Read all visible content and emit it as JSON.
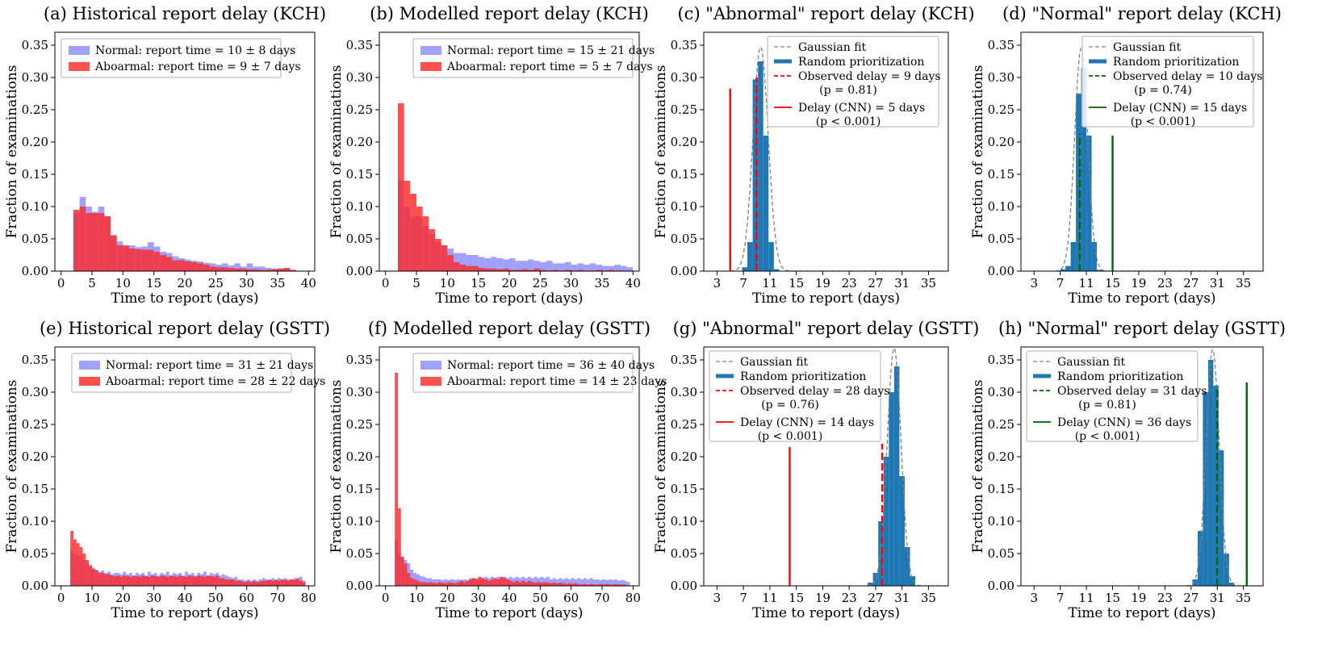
{
  "chart_data": [
    {
      "id": "a",
      "type": "histogram",
      "title": "(a) Historical report delay (KCH)",
      "xlabel": "Time to report (days)",
      "ylabel": "Fraction of examinations",
      "xlim": [
        -1,
        41
      ],
      "ylim": [
        0,
        0.37
      ],
      "xticks": [
        0,
        5,
        10,
        15,
        20,
        25,
        30,
        35,
        40
      ],
      "yticks": [
        0.0,
        0.05,
        0.1,
        0.15,
        0.2,
        0.25,
        0.3,
        0.35
      ],
      "ytick_labels": [
        "0.00",
        "0.05",
        "0.10",
        "0.15",
        "0.20",
        "0.25",
        "0.30",
        "0.35"
      ],
      "legend_position": "upper-left",
      "bins": {
        "start": 2,
        "width": 1
      },
      "series": [
        {
          "name": "Normal: report time = 10 ± 8 days",
          "color": "#8080ff",
          "values": [
            0.09,
            0.115,
            0.1,
            0.092,
            0.1,
            0.085,
            0.056,
            0.046,
            0.038,
            0.04,
            0.037,
            0.038,
            0.045,
            0.038,
            0.03,
            0.028,
            0.023,
            0.02,
            0.018,
            0.016,
            0.015,
            0.013,
            0.012,
            0.01,
            0.012,
            0.009,
            0.012,
            0.007,
            0.012,
            0.007,
            0.007,
            0.005,
            0.004,
            0.004,
            0.005,
            0.002
          ]
        },
        {
          "name": "Aboarmal: report time = 9 ± 7 days",
          "color": "#ff2a2a",
          "values": [
            0.095,
            0.1,
            0.09,
            0.09,
            0.09,
            0.085,
            0.055,
            0.04,
            0.04,
            0.035,
            0.034,
            0.033,
            0.033,
            0.03,
            0.025,
            0.022,
            0.017,
            0.017,
            0.015,
            0.014,
            0.012,
            0.01,
            0.007,
            0.006,
            0.006,
            0.005,
            0.004,
            0.004,
            0.003,
            0.003,
            0.002,
            0.002,
            0.003,
            0.004,
            0.005,
            0.002
          ]
        }
      ]
    },
    {
      "id": "b",
      "type": "histogram",
      "title": "(b) Modelled report delay (KCH)",
      "xlabel": "Time to report (days)",
      "ylabel": "Fraction of examinations",
      "xlim": [
        -1,
        41
      ],
      "ylim": [
        0,
        0.37
      ],
      "xticks": [
        0,
        5,
        10,
        15,
        20,
        25,
        30,
        35,
        40
      ],
      "yticks": [
        0.0,
        0.05,
        0.1,
        0.15,
        0.2,
        0.25,
        0.3,
        0.35
      ],
      "ytick_labels": [
        "0.00",
        "0.05",
        "0.10",
        "0.15",
        "0.20",
        "0.25",
        "0.30",
        "0.35"
      ],
      "legend_position": "upper-right",
      "bins": {
        "start": 2,
        "width": 1
      },
      "series": [
        {
          "name": "Normal: report time = 15 ± 21 days",
          "color": "#8080ff",
          "values": [
            0.14,
            0.1,
            0.085,
            0.085,
            0.07,
            0.058,
            0.045,
            0.04,
            0.035,
            0.028,
            0.028,
            0.025,
            0.025,
            0.022,
            0.02,
            0.022,
            0.02,
            0.018,
            0.02,
            0.016,
            0.016,
            0.018,
            0.016,
            0.014,
            0.016,
            0.012,
            0.012,
            0.014,
            0.01,
            0.012,
            0.01,
            0.012,
            0.01,
            0.008,
            0.008,
            0.01,
            0.008,
            0.006
          ]
        },
        {
          "name": "Aboarmal: report time = 5 ± 7 days",
          "color": "#ff2a2a",
          "values": [
            0.26,
            0.14,
            0.12,
            0.1,
            0.085,
            0.065,
            0.05,
            0.04,
            0.025,
            0.014,
            0.01,
            0.008,
            0.008,
            0.005,
            0.004,
            0.004,
            0.003,
            0.004,
            0.002,
            0.002,
            0.003,
            0.002,
            0.004,
            0.002,
            0.001,
            0.002,
            0.001,
            0.002,
            0.001,
            0.002,
            0.001,
            0.001,
            0.002,
            0.001,
            0.002,
            0.001,
            0.001,
            0.001
          ]
        }
      ]
    },
    {
      "id": "c",
      "type": "significance",
      "title": "(c) \"Abnormal\" report delay (KCH)",
      "xlabel": "Time to report (days)",
      "ylabel": "Fraction of examinations",
      "xlim": [
        1,
        38
      ],
      "ylim": [
        0,
        0.37
      ],
      "xticks": [
        3,
        7,
        11,
        15,
        19,
        23,
        27,
        31,
        35
      ],
      "yticks": [
        0.0,
        0.05,
        0.1,
        0.15,
        0.2,
        0.25,
        0.3,
        0.35
      ],
      "ytick_labels": [
        "0.00",
        "0.05",
        "0.10",
        "0.15",
        "0.20",
        "0.25",
        "0.30",
        "0.35"
      ],
      "legend_position": "upper-right",
      "histogram": {
        "bin_starts": [
          6.8,
          7.6,
          8.4,
          9.2,
          10.0,
          10.8,
          11.6
        ],
        "bin_width": 0.8,
        "values": [
          0.006,
          0.045,
          0.297,
          0.325,
          0.21,
          0.045,
          0.003
        ],
        "color": "#1f77b4"
      },
      "gaussian": {
        "mean": 9.6,
        "sd": 1.15,
        "peak": 0.347,
        "color": "#808080"
      },
      "observed_line": {
        "x": 9,
        "height": 0.3,
        "color": "#ff0000"
      },
      "cnn_line": {
        "x": 5,
        "height": 0.283,
        "color": "#ff0000"
      },
      "legend": [
        "Gaussian fit",
        "Random prioritization",
        "Observed delay = 9 days",
        "(p = 0.81)",
        "Delay (CNN) = 5 days",
        "(p < 0.001)"
      ]
    },
    {
      "id": "d",
      "type": "significance",
      "title": "(d) \"Normal\" report delay (KCH)",
      "xlabel": "Time to report (days)",
      "ylabel": "Fraction of examinations",
      "xlim": [
        1,
        38
      ],
      "ylim": [
        0,
        0.37
      ],
      "xticks": [
        3,
        7,
        11,
        15,
        19,
        23,
        27,
        31,
        35
      ],
      "yticks": [
        0.0,
        0.05,
        0.1,
        0.15,
        0.2,
        0.25,
        0.3,
        0.35
      ],
      "ytick_labels": [
        "0.00",
        "0.05",
        "0.10",
        "0.15",
        "0.20",
        "0.25",
        "0.30",
        "0.35"
      ],
      "legend_position": "upper-right",
      "histogram": {
        "bin_starts": [
          7.0,
          7.8,
          8.6,
          9.4,
          10.2,
          11.0,
          11.8,
          12.6
        ],
        "bin_width": 0.8,
        "values": [
          0.003,
          0.008,
          0.045,
          0.275,
          0.315,
          0.21,
          0.045,
          0.002
        ],
        "color": "#1f77b4"
      },
      "gaussian": {
        "mean": 10.2,
        "sd": 1.0,
        "peak": 0.345,
        "color": "#808080"
      },
      "observed_line": {
        "x": 10,
        "height": 0.213,
        "color": "#006400"
      },
      "cnn_line": {
        "x": 15,
        "height": 0.21,
        "color": "#006400"
      },
      "legend": [
        "Gaussian fit",
        "Random prioritization",
        "Observed delay = 10 days",
        "(p = 0.74)",
        "Delay (CNN) = 15 days",
        "(p < 0.001)"
      ]
    },
    {
      "id": "e",
      "type": "histogram",
      "title": "(e) Historical report delay (GSTT)",
      "xlabel": "Time to report (days)",
      "ylabel": "Fraction of examinations",
      "xlim": [
        -2,
        82
      ],
      "ylim": [
        0,
        0.37
      ],
      "xticks": [
        0,
        10,
        20,
        30,
        40,
        50,
        60,
        70,
        80
      ],
      "yticks": [
        0.0,
        0.05,
        0.1,
        0.15,
        0.2,
        0.25,
        0.3,
        0.35
      ],
      "ytick_labels": [
        "0.00",
        "0.05",
        "0.10",
        "0.15",
        "0.20",
        "0.25",
        "0.30",
        "0.35"
      ],
      "legend_position": "upper-center",
      "bins": {
        "start": 3,
        "width": 1
      },
      "series": [
        {
          "name": "Normal: report time = 31 ± 21 days",
          "color": "#8080ff",
          "values": [
            0.055,
            0.05,
            0.048,
            0.045,
            0.04,
            0.035,
            0.03,
            0.028,
            0.025,
            0.022,
            0.024,
            0.02,
            0.022,
            0.018,
            0.02,
            0.02,
            0.018,
            0.022,
            0.018,
            0.02,
            0.016,
            0.02,
            0.018,
            0.02,
            0.016,
            0.022,
            0.018,
            0.02,
            0.016,
            0.02,
            0.018,
            0.022,
            0.016,
            0.02,
            0.018,
            0.02,
            0.016,
            0.022,
            0.018,
            0.02,
            0.016,
            0.02,
            0.018,
            0.022,
            0.016,
            0.02,
            0.018,
            0.02,
            0.016,
            0.018,
            0.016,
            0.014,
            0.012,
            0.014,
            0.01,
            0.01,
            0.008,
            0.01,
            0.008,
            0.01,
            0.008,
            0.01,
            0.012,
            0.01,
            0.01,
            0.012,
            0.01,
            0.012,
            0.01,
            0.012,
            0.01,
            0.01,
            0.012,
            0.01,
            0.014,
            0.008
          ]
        },
        {
          "name": "Aboarmal: report time = 28 ± 22 days",
          "color": "#ff2a2a",
          "values": [
            0.085,
            0.072,
            0.066,
            0.06,
            0.05,
            0.04,
            0.032,
            0.026,
            0.024,
            0.02,
            0.02,
            0.018,
            0.018,
            0.016,
            0.015,
            0.016,
            0.014,
            0.016,
            0.015,
            0.014,
            0.016,
            0.015,
            0.014,
            0.016,
            0.015,
            0.014,
            0.016,
            0.015,
            0.014,
            0.016,
            0.015,
            0.014,
            0.016,
            0.015,
            0.014,
            0.016,
            0.015,
            0.014,
            0.016,
            0.015,
            0.014,
            0.016,
            0.015,
            0.014,
            0.016,
            0.015,
            0.014,
            0.016,
            0.012,
            0.012,
            0.01,
            0.01,
            0.01,
            0.008,
            0.008,
            0.007,
            0.006,
            0.007,
            0.006,
            0.007,
            0.006,
            0.007,
            0.008,
            0.008,
            0.009,
            0.008,
            0.009,
            0.008,
            0.01,
            0.009,
            0.008,
            0.01,
            0.009,
            0.012,
            0.008,
            0.006
          ]
        }
      ]
    },
    {
      "id": "f",
      "type": "histogram",
      "title": "(f) Modelled report delay (GSTT)",
      "xlabel": "Time to report (days)",
      "ylabel": "Fraction of examinations",
      "xlim": [
        -2,
        82
      ],
      "ylim": [
        0,
        0.37
      ],
      "xticks": [
        0,
        10,
        20,
        30,
        40,
        50,
        60,
        70,
        80
      ],
      "yticks": [
        0.0,
        0.05,
        0.1,
        0.15,
        0.2,
        0.25,
        0.3,
        0.35
      ],
      "ytick_labels": [
        "0.00",
        "0.05",
        "0.10",
        "0.15",
        "0.20",
        "0.25",
        "0.30",
        "0.35"
      ],
      "legend_position": "upper-right",
      "bins": {
        "start": 3,
        "width": 1
      },
      "series": [
        {
          "name": "Normal: report time = 36 ± 40 days",
          "color": "#8080ff",
          "values": [
            0.07,
            0.05,
            0.045,
            0.04,
            0.035,
            0.025,
            0.02,
            0.018,
            0.015,
            0.014,
            0.012,
            0.012,
            0.01,
            0.01,
            0.01,
            0.009,
            0.01,
            0.009,
            0.01,
            0.009,
            0.01,
            0.009,
            0.01,
            0.009,
            0.012,
            0.011,
            0.012,
            0.011,
            0.012,
            0.014,
            0.012,
            0.014,
            0.012,
            0.014,
            0.012,
            0.014,
            0.012,
            0.014,
            0.012,
            0.014,
            0.012,
            0.014,
            0.012,
            0.014,
            0.012,
            0.014,
            0.012,
            0.014,
            0.012,
            0.014,
            0.01,
            0.012,
            0.01,
            0.012,
            0.01,
            0.012,
            0.01,
            0.012,
            0.01,
            0.012,
            0.01,
            0.012,
            0.01,
            0.012,
            0.01,
            0.01,
            0.009,
            0.01,
            0.009,
            0.01,
            0.009,
            0.01,
            0.008,
            0.009,
            0.008,
            0.006
          ]
        },
        {
          "name": "Aboarmal: report time = 14 ± 23 days",
          "color": "#ff2a2a",
          "values": [
            0.33,
            0.12,
            0.045,
            0.035,
            0.02,
            0.012,
            0.01,
            0.008,
            0.006,
            0.006,
            0.005,
            0.006,
            0.005,
            0.004,
            0.006,
            0.005,
            0.004,
            0.006,
            0.005,
            0.004,
            0.006,
            0.008,
            0.006,
            0.008,
            0.01,
            0.012,
            0.01,
            0.014,
            0.012,
            0.01,
            0.008,
            0.01,
            0.012,
            0.01,
            0.014,
            0.012,
            0.01,
            0.008,
            0.006,
            0.008,
            0.006,
            0.008,
            0.006,
            0.008,
            0.006,
            0.005,
            0.006,
            0.005,
            0.006,
            0.005,
            0.004,
            0.005,
            0.004,
            0.005,
            0.004,
            0.003,
            0.004,
            0.003,
            0.004,
            0.003,
            0.002,
            0.003,
            0.002,
            0.003,
            0.002,
            0.002,
            0.003,
            0.002,
            0.003,
            0.002,
            0.002,
            0.003,
            0.002,
            0.002,
            0.002,
            0.001
          ]
        }
      ]
    },
    {
      "id": "g",
      "type": "significance",
      "title": "(g) \"Abnormal\" report delay (GSTT)",
      "xlabel": "Time to report (days)",
      "ylabel": "Fraction of examinations",
      "xlim": [
        1,
        38
      ],
      "ylim": [
        0,
        0.37
      ],
      "xticks": [
        3,
        7,
        11,
        15,
        19,
        23,
        27,
        31,
        35
      ],
      "yticks": [
        0.0,
        0.05,
        0.1,
        0.15,
        0.2,
        0.25,
        0.3,
        0.35
      ],
      "ytick_labels": [
        "0.00",
        "0.05",
        "0.10",
        "0.15",
        "0.20",
        "0.25",
        "0.30",
        "0.35"
      ],
      "legend_position": "upper-left",
      "histogram": {
        "bin_starts": [
          25.8,
          26.6,
          27.4,
          28.2,
          29.0,
          29.8,
          30.6,
          31.4,
          32.2
        ],
        "bin_width": 0.8,
        "values": [
          0.005,
          0.02,
          0.1,
          0.2,
          0.3,
          0.34,
          0.17,
          0.06,
          0.015
        ],
        "color": "#1f77b4"
      },
      "gaussian": {
        "mean": 29.8,
        "sd": 1.05,
        "peak": 0.368,
        "color": "#808080"
      },
      "observed_line": {
        "x": 28,
        "height": 0.22,
        "color": "#ff0000"
      },
      "cnn_line": {
        "x": 14,
        "height": 0.215,
        "color": "#ff0000"
      },
      "legend": [
        "Gaussian fit",
        "Random prioritization",
        "Observed delay = 28 days",
        "(p = 0.76)",
        "Delay (CNN) = 14 days",
        "(p < 0.001)"
      ]
    },
    {
      "id": "h",
      "type": "significance",
      "title": "(h) \"Normal\" report delay (GSTT)",
      "xlabel": "Time to report (days)",
      "ylabel": "Fraction of examinations",
      "xlim": [
        1,
        38
      ],
      "ylim": [
        0,
        0.37
      ],
      "xticks": [
        3,
        7,
        11,
        15,
        19,
        23,
        27,
        31,
        35
      ],
      "yticks": [
        0.0,
        0.05,
        0.1,
        0.15,
        0.2,
        0.25,
        0.3,
        0.35
      ],
      "ytick_labels": [
        "0.00",
        "0.05",
        "0.10",
        "0.15",
        "0.20",
        "0.25",
        "0.30",
        "0.35"
      ],
      "legend_position": "upper-left",
      "histogram": {
        "bin_starts": [
          27.2,
          28.0,
          28.8,
          29.6,
          30.4,
          31.2,
          32.0,
          32.8
        ],
        "bin_width": 0.8,
        "values": [
          0.01,
          0.085,
          0.3,
          0.35,
          0.31,
          0.21,
          0.05,
          0.005
        ],
        "color": "#1f77b4"
      },
      "gaussian": {
        "mean": 30.3,
        "sd": 1.0,
        "peak": 0.366,
        "color": "#808080"
      },
      "observed_line": {
        "x": 31,
        "height": 0.31,
        "color": "#006400"
      },
      "cnn_line": {
        "x": 35.5,
        "height": 0.315,
        "color": "#006400"
      },
      "legend": [
        "Gaussian fit",
        "Random prioritization",
        "Observed delay = 31 days",
        "(p = 0.81)",
        "Delay (CNN) = 36 days",
        "(p < 0.001)"
      ]
    }
  ]
}
